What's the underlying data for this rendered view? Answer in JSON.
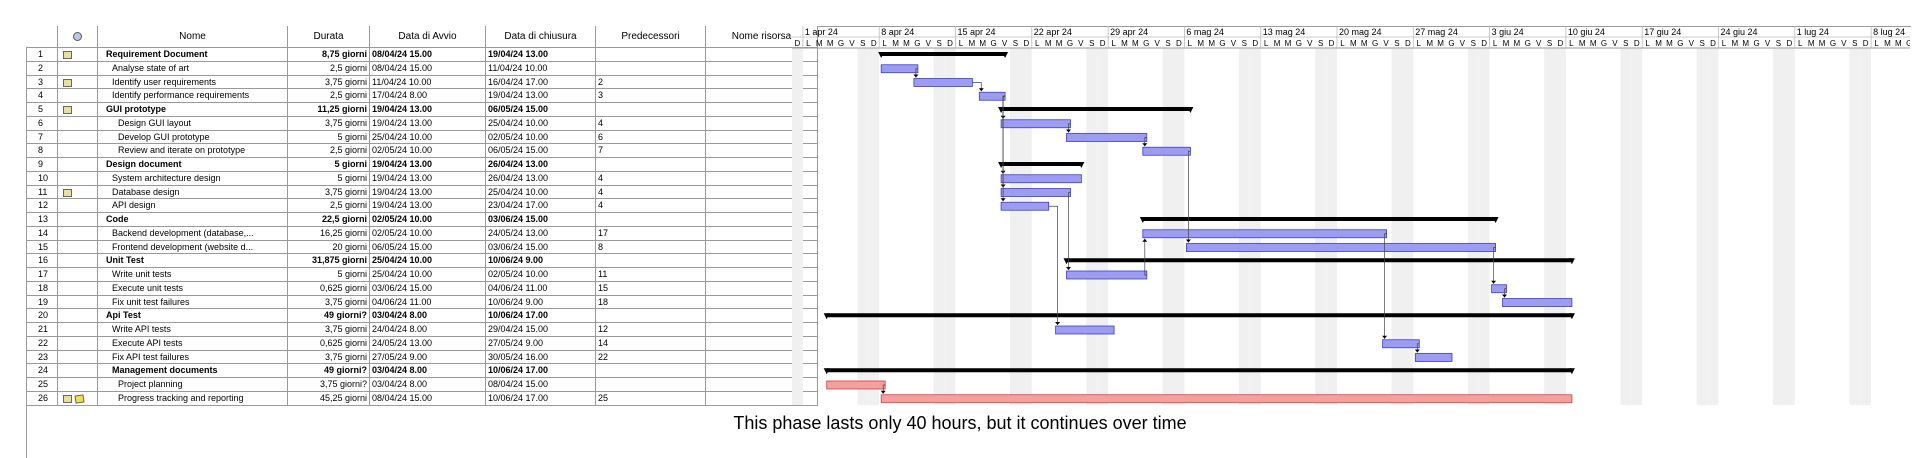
{
  "columns": [
    "",
    "Nome",
    "Durata",
    "Data di Avvio",
    "Data di chiusura",
    "Predecessori",
    "Nome risorsa"
  ],
  "tasks": [
    {
      "id": "1",
      "name": "Requirement Document",
      "duration": "8,75 giorni",
      "start": "08/04/24 15.00",
      "end": "19/04/24 13.00",
      "pred": "",
      "bold": true,
      "icon": "calendar-icon",
      "indent": 0
    },
    {
      "id": "2",
      "name": "Analyse state of art",
      "duration": "2,5 giorni",
      "start": "08/04/24 15.00",
      "end": "11/04/24 10.00",
      "pred": "",
      "bold": false,
      "icon": "",
      "indent": 1
    },
    {
      "id": "3",
      "name": "Identify user requirements",
      "duration": "3,75 giorni",
      "start": "11/04/24 10.00",
      "end": "16/04/24 17.00",
      "pred": "2",
      "bold": false,
      "icon": "calendar-icon",
      "indent": 1
    },
    {
      "id": "4",
      "name": "Identify performance requirements",
      "duration": "2,5 giorni",
      "start": "17/04/24 8.00",
      "end": "19/04/24 13.00",
      "pred": "3",
      "bold": false,
      "icon": "",
      "indent": 1
    },
    {
      "id": "5",
      "name": "GUI prototype",
      "duration": "11,25 giorni",
      "start": "19/04/24 13.00",
      "end": "06/05/24 15.00",
      "pred": "",
      "bold": true,
      "icon": "calendar-icon",
      "indent": 0
    },
    {
      "id": "6",
      "name": "Design GUI layout",
      "duration": "3,75 giorni",
      "start": "19/04/24 13.00",
      "end": "25/04/24 10.00",
      "pred": "4",
      "bold": false,
      "icon": "",
      "indent": 2
    },
    {
      "id": "7",
      "name": "Develop GUI prototype",
      "duration": "5 giorni",
      "start": "25/04/24 10.00",
      "end": "02/05/24 10.00",
      "pred": "6",
      "bold": false,
      "icon": "",
      "indent": 2
    },
    {
      "id": "8",
      "name": "Review and iterate on prototype",
      "duration": "2,5 giorni",
      "start": "02/05/24 10.00",
      "end": "06/05/24 15.00",
      "pred": "7",
      "bold": false,
      "icon": "",
      "indent": 2
    },
    {
      "id": "9",
      "name": "Design document",
      "duration": "5 giorni",
      "start": "19/04/24 13.00",
      "end": "26/04/24 13.00",
      "pred": "",
      "bold": true,
      "icon": "",
      "indent": 0
    },
    {
      "id": "10",
      "name": "System architecture design",
      "duration": "5 giorni",
      "start": "19/04/24 13.00",
      "end": "26/04/24 13.00",
      "pred": "4",
      "bold": false,
      "icon": "",
      "indent": 1
    },
    {
      "id": "11",
      "name": "Database design",
      "duration": "3,75 giorni",
      "start": "19/04/24 13.00",
      "end": "25/04/24 10.00",
      "pred": "4",
      "bold": false,
      "icon": "calendar-icon",
      "indent": 1
    },
    {
      "id": "12",
      "name": "API design",
      "duration": "2,5 giorni",
      "start": "19/04/24 13.00",
      "end": "23/04/24 17.00",
      "pred": "4",
      "bold": false,
      "icon": "",
      "indent": 1
    },
    {
      "id": "13",
      "name": "Code",
      "duration": "22,5 giorni",
      "start": "02/05/24 10.00",
      "end": "03/06/24 15.00",
      "pred": "",
      "bold": true,
      "icon": "",
      "indent": 0
    },
    {
      "id": "14",
      "name": "Backend development (database,...",
      "duration": "16,25 giorni",
      "start": "02/05/24 10.00",
      "end": "24/05/24 13.00",
      "pred": "17",
      "bold": false,
      "icon": "",
      "indent": 1
    },
    {
      "id": "15",
      "name": "Frontend development (website d...",
      "duration": "20 giorni",
      "start": "06/05/24 15.00",
      "end": "03/06/24 15.00",
      "pred": "8",
      "bold": false,
      "icon": "",
      "indent": 1
    },
    {
      "id": "16",
      "name": "Unit Test",
      "duration": "31,875 giorni",
      "start": "25/04/24 10.00",
      "end": "10/06/24 9.00",
      "pred": "",
      "bold": true,
      "icon": "",
      "indent": 0
    },
    {
      "id": "17",
      "name": "Write unit tests",
      "duration": "5 giorni",
      "start": "25/04/24 10.00",
      "end": "02/05/24 10.00",
      "pred": "11",
      "bold": false,
      "icon": "",
      "indent": 1
    },
    {
      "id": "18",
      "name": "Execute unit tests",
      "duration": "0,625 giorni",
      "start": "03/06/24 15.00",
      "end": "04/06/24 11.00",
      "pred": "15",
      "bold": false,
      "icon": "",
      "indent": 1
    },
    {
      "id": "19",
      "name": "Fix unit test failures",
      "duration": "3,75 giorni",
      "start": "04/06/24 11.00",
      "end": "10/06/24 9.00",
      "pred": "18",
      "bold": false,
      "icon": "",
      "indent": 1
    },
    {
      "id": "20",
      "name": "Api Test",
      "duration": "49 giorni?",
      "start": "03/04/24 8.00",
      "end": "10/06/24 17.00",
      "pred": "",
      "bold": true,
      "icon": "",
      "indent": 0
    },
    {
      "id": "21",
      "name": "Write API tests",
      "duration": "3,75 giorni",
      "start": "24/04/24 8.00",
      "end": "29/04/24 15.00",
      "pred": "12",
      "bold": false,
      "icon": "",
      "indent": 1
    },
    {
      "id": "22",
      "name": "Execute API tests",
      "duration": "0,625 giorni",
      "start": "24/05/24 13.00",
      "end": "27/05/24 9.00",
      "pred": "14",
      "bold": false,
      "icon": "",
      "indent": 1
    },
    {
      "id": "23",
      "name": "Fix API test failures",
      "duration": "3,75 giorni",
      "start": "27/05/24 9.00",
      "end": "30/05/24 16.00",
      "pred": "22",
      "bold": false,
      "icon": "",
      "indent": 1
    },
    {
      "id": "24",
      "name": "Management documents",
      "duration": "49 giorni?",
      "start": "03/04/24 8.00",
      "end": "10/06/24 17.00",
      "pred": "",
      "bold": true,
      "icon": "",
      "indent": 1
    },
    {
      "id": "25",
      "name": "Project planning",
      "duration": "3,75 giorni?",
      "start": "03/04/24 8.00",
      "end": "08/04/24 15.00",
      "pred": "",
      "bold": false,
      "icon": "",
      "indent": 2
    },
    {
      "id": "26",
      "name": "Progress tracking and reporting",
      "duration": "45,25 giorni",
      "start": "08/04/24 15.00",
      "end": "10/06/24 17.00",
      "pred": "25",
      "bold": false,
      "icon": "calendar-note-icon",
      "indent": 2
    }
  ],
  "timeline": {
    "weeks": [
      "1 apr 24",
      "8 apr 24",
      "15 apr 24",
      "22 apr 24",
      "29 apr 24",
      "6 mag 24",
      "13 mag 24",
      "20 mag 24",
      "27 mag 24",
      "3 giu 24",
      "10 giu 24",
      "17 giu 24",
      "24 giu 24",
      "1 lug 24",
      "8 lug 24"
    ],
    "day_letters": [
      "D",
      "L",
      "M",
      "M",
      "G",
      "V",
      "S"
    ],
    "colors": {
      "task_fill": "#9c9cf0",
      "task_border": "#3c3cd0",
      "manual_fill": "#f4a0a0",
      "manual_border": "#d04040",
      "summary": "#000000",
      "weekend": "#f0f0f0"
    }
  },
  "bars": [
    {
      "row": 1,
      "start": "2024-04-08",
      "end": "2024-04-19",
      "kind": "summary"
    },
    {
      "row": 2,
      "start": "2024-04-08",
      "end": "2024-04-11",
      "kind": "task"
    },
    {
      "row": 3,
      "start": "2024-04-11",
      "end": "2024-04-16",
      "kind": "task"
    },
    {
      "row": 4,
      "start": "2024-04-17",
      "end": "2024-04-19",
      "kind": "task"
    },
    {
      "row": 5,
      "start": "2024-04-19",
      "end": "2024-05-06",
      "kind": "summary"
    },
    {
      "row": 6,
      "start": "2024-04-19",
      "end": "2024-04-25",
      "kind": "task"
    },
    {
      "row": 7,
      "start": "2024-04-25",
      "end": "2024-05-02",
      "kind": "task"
    },
    {
      "row": 8,
      "start": "2024-05-02",
      "end": "2024-05-06",
      "kind": "task"
    },
    {
      "row": 9,
      "start": "2024-04-19",
      "end": "2024-04-26",
      "kind": "summary"
    },
    {
      "row": 10,
      "start": "2024-04-19",
      "end": "2024-04-26",
      "kind": "task"
    },
    {
      "row": 11,
      "start": "2024-04-19",
      "end": "2024-04-25",
      "kind": "task"
    },
    {
      "row": 12,
      "start": "2024-04-19",
      "end": "2024-04-23",
      "kind": "task"
    },
    {
      "row": 13,
      "start": "2024-05-02",
      "end": "2024-06-03",
      "kind": "summary"
    },
    {
      "row": 14,
      "start": "2024-05-02",
      "end": "2024-05-24",
      "kind": "task"
    },
    {
      "row": 15,
      "start": "2024-05-06",
      "end": "2024-06-03",
      "kind": "task"
    },
    {
      "row": 16,
      "start": "2024-04-25",
      "end": "2024-06-10",
      "kind": "summary"
    },
    {
      "row": 17,
      "start": "2024-04-25",
      "end": "2024-05-02",
      "kind": "task"
    },
    {
      "row": 18,
      "start": "2024-06-03",
      "end": "2024-06-04",
      "kind": "task"
    },
    {
      "row": 19,
      "start": "2024-06-04",
      "end": "2024-06-10",
      "kind": "task"
    },
    {
      "row": 20,
      "start": "2024-04-03",
      "end": "2024-06-10",
      "kind": "summary"
    },
    {
      "row": 21,
      "start": "2024-04-24",
      "end": "2024-04-29",
      "kind": "task"
    },
    {
      "row": 22,
      "start": "2024-05-24",
      "end": "2024-05-27",
      "kind": "task"
    },
    {
      "row": 23,
      "start": "2024-05-27",
      "end": "2024-05-30",
      "kind": "task"
    },
    {
      "row": 24,
      "start": "2024-04-03",
      "end": "2024-06-10",
      "kind": "summary"
    },
    {
      "row": 25,
      "start": "2024-04-03",
      "end": "2024-04-08",
      "kind": "manual"
    },
    {
      "row": 26,
      "start": "2024-04-08",
      "end": "2024-06-10",
      "kind": "manual"
    }
  ],
  "footer_note": "This phase lasts only 40 hours, but it continues over time"
}
